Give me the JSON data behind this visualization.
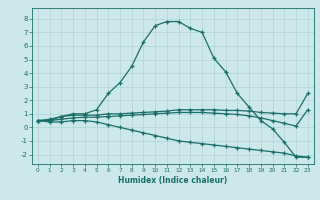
{
  "xlabel": "Humidex (Indice chaleur)",
  "ylabel": "",
  "xlim": [
    -0.5,
    23.5
  ],
  "ylim": [
    -2.7,
    8.8
  ],
  "bg_color": "#cce8ea",
  "line_color": "#1a6e6a",
  "grid_color": "#b0d4d8",
  "x": [
    0,
    1,
    2,
    3,
    4,
    5,
    6,
    7,
    8,
    9,
    10,
    11,
    12,
    13,
    14,
    15,
    16,
    17,
    18,
    19,
    20,
    21,
    22,
    23
  ],
  "line_main": [
    0.5,
    0.5,
    0.8,
    1.0,
    1.0,
    1.3,
    2.5,
    3.3,
    4.5,
    6.3,
    7.5,
    7.8,
    7.8,
    7.3,
    7.0,
    5.1,
    4.1,
    2.5,
    1.5,
    0.5,
    -0.1,
    -1.1,
    -2.2,
    -2.2
  ],
  "line_upper": [
    0.5,
    0.6,
    0.8,
    0.9,
    0.9,
    0.9,
    1.0,
    1.0,
    1.05,
    1.1,
    1.15,
    1.2,
    1.3,
    1.3,
    1.3,
    1.3,
    1.25,
    1.25,
    1.2,
    1.1,
    1.05,
    1.0,
    1.0,
    2.5
  ],
  "line_mid": [
    0.5,
    0.5,
    0.6,
    0.7,
    0.75,
    0.75,
    0.8,
    0.85,
    0.9,
    0.95,
    1.0,
    1.05,
    1.1,
    1.1,
    1.1,
    1.05,
    1.0,
    0.95,
    0.85,
    0.7,
    0.5,
    0.3,
    0.1,
    1.3
  ],
  "line_lower": [
    0.5,
    0.4,
    0.4,
    0.5,
    0.5,
    0.4,
    0.2,
    0.0,
    -0.2,
    -0.4,
    -0.6,
    -0.8,
    -1.0,
    -1.1,
    -1.2,
    -1.3,
    -1.4,
    -1.5,
    -1.6,
    -1.7,
    -1.8,
    -1.9,
    -2.1,
    -2.2
  ],
  "yticks": [
    -2,
    -1,
    0,
    1,
    2,
    3,
    4,
    5,
    6,
    7,
    8
  ],
  "xticks": [
    0,
    1,
    2,
    3,
    4,
    5,
    6,
    7,
    8,
    9,
    10,
    11,
    12,
    13,
    14,
    15,
    16,
    17,
    18,
    19,
    20,
    21,
    22,
    23
  ]
}
